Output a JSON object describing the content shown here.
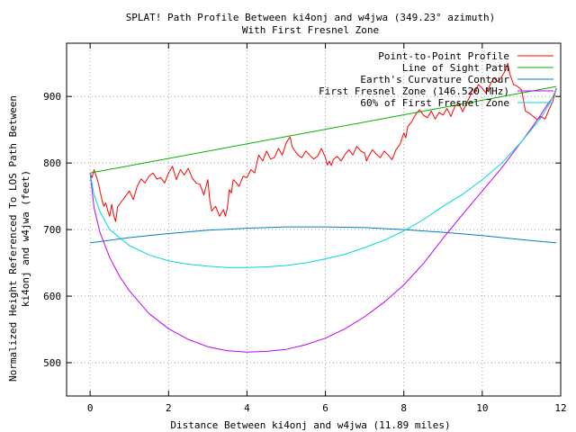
{
  "chart_data": {
    "type": "line",
    "title": "SPLAT! Path Profile Between ki4onj and w4jwa (349.23° azimuth)",
    "subtitle": "With First Fresnel Zone",
    "xlabel": "Distance Between ki4onj and w4jwa (11.89 miles)",
    "ylabel_lines": [
      "Normalized Height Referenced To LOS Path Between",
      "ki4onj and w4jwa (feet)"
    ],
    "xlim": [
      -0.6,
      12
    ],
    "ylim": [
      450,
      980
    ],
    "x_ticks": [
      0,
      2,
      4,
      6,
      8,
      10,
      12
    ],
    "y_ticks": [
      500,
      600,
      700,
      800,
      900
    ],
    "grid": true,
    "legend_position": "top-right",
    "series": [
      {
        "name": "Point-to-Point Profile",
        "color": "#ff0000",
        "points": [
          [
            0,
            785
          ],
          [
            0.05,
            778
          ],
          [
            0.1,
            790
          ],
          [
            0.2,
            772
          ],
          [
            0.3,
            745
          ],
          [
            0.35,
            735
          ],
          [
            0.4,
            740
          ],
          [
            0.45,
            728
          ],
          [
            0.5,
            720
          ],
          [
            0.55,
            738
          ],
          [
            0.6,
            722
          ],
          [
            0.65,
            712
          ],
          [
            0.7,
            734
          ],
          [
            0.8,
            742
          ],
          [
            0.9,
            750
          ],
          [
            1.0,
            758
          ],
          [
            1.1,
            745
          ],
          [
            1.2,
            765
          ],
          [
            1.3,
            776
          ],
          [
            1.4,
            770
          ],
          [
            1.5,
            780
          ],
          [
            1.6,
            785
          ],
          [
            1.7,
            776
          ],
          [
            1.8,
            778
          ],
          [
            1.9,
            770
          ],
          [
            2.0,
            785
          ],
          [
            2.1,
            795
          ],
          [
            2.2,
            775
          ],
          [
            2.3,
            790
          ],
          [
            2.4,
            782
          ],
          [
            2.5,
            792
          ],
          [
            2.6,
            778
          ],
          [
            2.7,
            770
          ],
          [
            2.8,
            768
          ],
          [
            2.9,
            752
          ],
          [
            3.0,
            775
          ],
          [
            3.05,
            745
          ],
          [
            3.1,
            728
          ],
          [
            3.2,
            735
          ],
          [
            3.3,
            720
          ],
          [
            3.4,
            730
          ],
          [
            3.45,
            720
          ],
          [
            3.5,
            732
          ],
          [
            3.55,
            760
          ],
          [
            3.6,
            755
          ],
          [
            3.65,
            775
          ],
          [
            3.7,
            772
          ],
          [
            3.8,
            765
          ],
          [
            3.9,
            780
          ],
          [
            4.0,
            778
          ],
          [
            4.1,
            790
          ],
          [
            4.2,
            785
          ],
          [
            4.25,
            800
          ],
          [
            4.3,
            812
          ],
          [
            4.4,
            803
          ],
          [
            4.5,
            818
          ],
          [
            4.6,
            806
          ],
          [
            4.7,
            808
          ],
          [
            4.8,
            822
          ],
          [
            4.9,
            812
          ],
          [
            5.0,
            830
          ],
          [
            5.05,
            835
          ],
          [
            5.1,
            839
          ],
          [
            5.15,
            825
          ],
          [
            5.2,
            820
          ],
          [
            5.3,
            812
          ],
          [
            5.4,
            808
          ],
          [
            5.5,
            818
          ],
          [
            5.6,
            812
          ],
          [
            5.7,
            806
          ],
          [
            5.8,
            810
          ],
          [
            5.9,
            822
          ],
          [
            6.0,
            808
          ],
          [
            6.05,
            797
          ],
          [
            6.1,
            803
          ],
          [
            6.15,
            796
          ],
          [
            6.2,
            805
          ],
          [
            6.3,
            810
          ],
          [
            6.4,
            803
          ],
          [
            6.5,
            813
          ],
          [
            6.6,
            820
          ],
          [
            6.7,
            812
          ],
          [
            6.8,
            825
          ],
          [
            6.9,
            818
          ],
          [
            7.0,
            815
          ],
          [
            7.05,
            803
          ],
          [
            7.1,
            810
          ],
          [
            7.2,
            820
          ],
          [
            7.3,
            813
          ],
          [
            7.4,
            808
          ],
          [
            7.5,
            818
          ],
          [
            7.6,
            812
          ],
          [
            7.7,
            805
          ],
          [
            7.8,
            820
          ],
          [
            7.9,
            828
          ],
          [
            8.0,
            845
          ],
          [
            8.05,
            838
          ],
          [
            8.1,
            855
          ],
          [
            8.2,
            862
          ],
          [
            8.3,
            873
          ],
          [
            8.4,
            880
          ],
          [
            8.5,
            872
          ],
          [
            8.6,
            868
          ],
          [
            8.7,
            878
          ],
          [
            8.8,
            866
          ],
          [
            8.9,
            876
          ],
          [
            9.0,
            872
          ],
          [
            9.1,
            882
          ],
          [
            9.2,
            870
          ],
          [
            9.3,
            885
          ],
          [
            9.4,
            890
          ],
          [
            9.5,
            877
          ],
          [
            9.6,
            890
          ],
          [
            9.7,
            902
          ],
          [
            9.75,
            912
          ],
          [
            9.8,
            905
          ],
          [
            9.9,
            918
          ],
          [
            10.0,
            912
          ],
          [
            10.1,
            905
          ],
          [
            10.2,
            918
          ],
          [
            10.3,
            928
          ],
          [
            10.4,
            922
          ],
          [
            10.5,
            930
          ],
          [
            10.6,
            940
          ],
          [
            10.65,
            950
          ],
          [
            10.7,
            934
          ],
          [
            10.8,
            918
          ],
          [
            10.9,
            915
          ],
          [
            11.0,
            910
          ],
          [
            11.05,
            895
          ],
          [
            11.1,
            878
          ],
          [
            11.2,
            875
          ],
          [
            11.3,
            870
          ],
          [
            11.4,
            865
          ],
          [
            11.5,
            870
          ],
          [
            11.6,
            866
          ],
          [
            11.7,
            880
          ],
          [
            11.8,
            893
          ],
          [
            11.89,
            912
          ]
        ]
      },
      {
        "name": "Line of Sight Path",
        "color": "#00b000",
        "points": [
          [
            0,
            785
          ],
          [
            11.89,
            915
          ]
        ]
      },
      {
        "name": "Earth's Curvature Contour",
        "color": "#0080c0",
        "points": [
          [
            0,
            680
          ],
          [
            1,
            688
          ],
          [
            2,
            694
          ],
          [
            3,
            699
          ],
          [
            4,
            702
          ],
          [
            5,
            704
          ],
          [
            5.95,
            704
          ],
          [
            7,
            703
          ],
          [
            8,
            700
          ],
          [
            9,
            696
          ],
          [
            10,
            691
          ],
          [
            11,
            685
          ],
          [
            11.89,
            680
          ]
        ]
      },
      {
        "name": "First Fresnel Zone (146.520 MHz)",
        "color": "#c000ff",
        "points": [
          [
            0,
            785
          ],
          [
            0.1,
            733
          ],
          [
            0.25,
            696
          ],
          [
            0.5,
            658
          ],
          [
            0.75,
            630
          ],
          [
            1,
            608
          ],
          [
            1.5,
            574
          ],
          [
            2,
            551
          ],
          [
            2.5,
            535
          ],
          [
            3,
            524
          ],
          [
            3.5,
            518
          ],
          [
            4,
            516
          ],
          [
            4.5,
            517
          ],
          [
            5,
            520
          ],
          [
            5.5,
            527
          ],
          [
            6,
            537
          ],
          [
            6.5,
            551
          ],
          [
            7,
            569
          ],
          [
            7.5,
            591
          ],
          [
            8,
            617
          ],
          [
            8.5,
            649
          ],
          [
            9,
            687
          ],
          [
            9.5,
            723
          ],
          [
            10,
            758
          ],
          [
            10.5,
            793
          ],
          [
            11,
            832
          ],
          [
            11.25,
            852
          ],
          [
            11.5,
            873
          ],
          [
            11.65,
            887
          ],
          [
            11.8,
            899
          ],
          [
            11.89,
            912
          ]
        ]
      },
      {
        "name": "60% of First Fresnel Zone",
        "color": "#00d8d8",
        "points": [
          [
            0,
            785
          ],
          [
            0.1,
            752
          ],
          [
            0.25,
            727
          ],
          [
            0.5,
            700
          ],
          [
            1,
            676
          ],
          [
            1.5,
            662
          ],
          [
            2,
            653
          ],
          [
            2.5,
            648
          ],
          [
            3,
            645
          ],
          [
            3.5,
            643
          ],
          [
            4,
            643
          ],
          [
            4.5,
            644
          ],
          [
            5,
            646
          ],
          [
            5.5,
            650
          ],
          [
            6,
            656
          ],
          [
            6.5,
            663
          ],
          [
            7,
            673
          ],
          [
            7.5,
            684
          ],
          [
            8,
            698
          ],
          [
            8.5,
            715
          ],
          [
            9,
            735
          ],
          [
            9.5,
            753
          ],
          [
            10,
            775
          ],
          [
            10.5,
            800
          ],
          [
            11,
            832
          ],
          [
            11.25,
            850
          ],
          [
            11.5,
            868
          ],
          [
            11.7,
            888
          ],
          [
            11.89,
            910
          ]
        ]
      }
    ]
  }
}
